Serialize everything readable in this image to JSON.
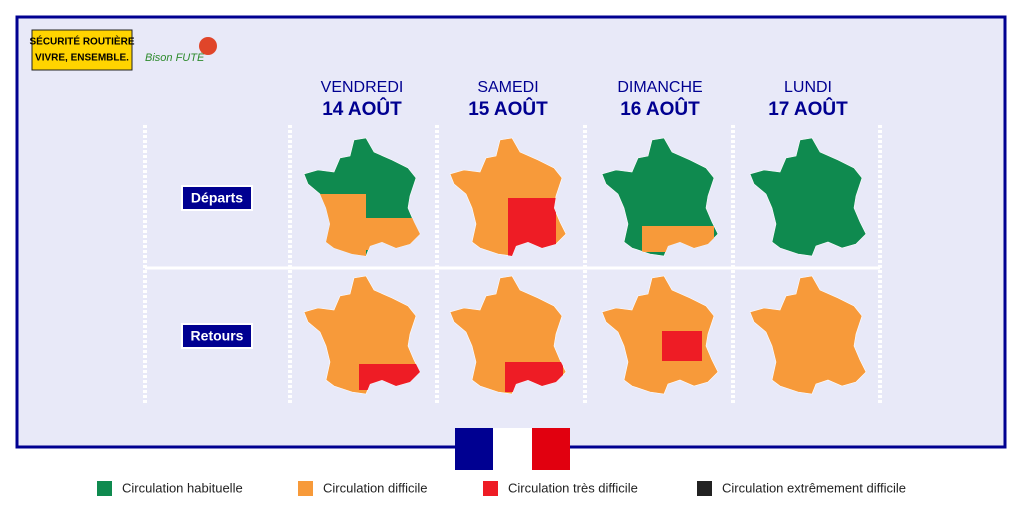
{
  "logo": {
    "line1": "SÉCURITÉ ROUTIÈRE",
    "line2": "VIVRE, ENSEMBLE.",
    "bison": "Bison FUTÉ"
  },
  "days": [
    {
      "weekday": "VENDREDI",
      "date": "14 AOÛT"
    },
    {
      "weekday": "SAMEDI",
      "date": "15 AOÛT"
    },
    {
      "weekday": "DIMANCHE",
      "date": "16 AOÛT"
    },
    {
      "weekday": "LUNDI",
      "date": "17 AOÛT"
    }
  ],
  "rows": [
    "Départs",
    "Retours"
  ],
  "legend": [
    {
      "label": "Circulation habituelle",
      "color": "#0f8a4f"
    },
    {
      "label": "Circulation difficile",
      "color": "#f79a3a"
    },
    {
      "label": "Circulation très difficile",
      "color": "#ee1c25"
    },
    {
      "label": "Circulation extrêmement difficile",
      "color": "#222222"
    }
  ]
}
